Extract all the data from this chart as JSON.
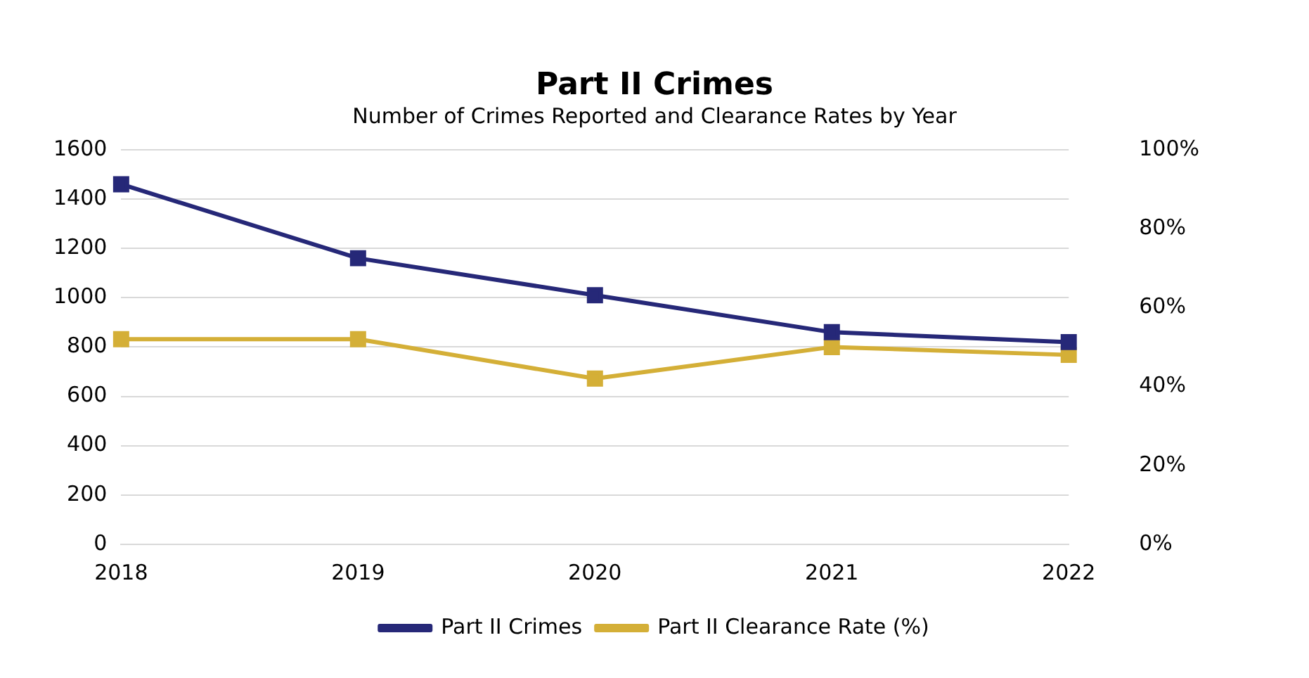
{
  "chart_data": {
    "type": "line",
    "title": "Part II Crimes",
    "subtitle": "Number of Crimes Reported and Clearance Rates by Year",
    "categories": [
      "2018",
      "2019",
      "2020",
      "2021",
      "2022"
    ],
    "series": [
      {
        "name": "Part II Crimes",
        "color": "#262878",
        "values": [
          1460,
          1160,
          1010,
          860,
          820
        ]
      },
      {
        "name": "Part II Clearance Rate (%)",
        "color": "#d4af37",
        "values": [
          52,
          52,
          42,
          50,
          48
        ],
        "axis": "y2"
      }
    ],
    "ylim": [
      0,
      1600
    ],
    "yticks": [
      0,
      200,
      400,
      600,
      800,
      1000,
      1200,
      1400,
      1600
    ],
    "y2lim": [
      0,
      100
    ],
    "y2ticks": [
      {
        "value": 0,
        "label": "0%"
      },
      {
        "value": 20,
        "label": "20%"
      },
      {
        "value": 40,
        "label": "40%"
      },
      {
        "value": 60,
        "label": "60%"
      },
      {
        "value": 80,
        "label": "80%"
      },
      {
        "value": 100,
        "label": "100%"
      }
    ],
    "grid": "y",
    "legend": "bottom",
    "marker": "square",
    "line_style": "solid"
  }
}
